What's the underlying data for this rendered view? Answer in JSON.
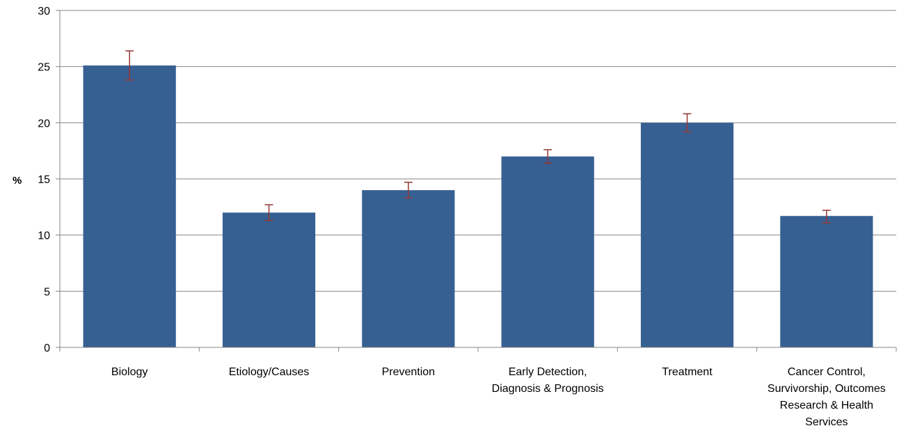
{
  "chart_data": {
    "type": "bar",
    "title": "",
    "xlabel": "",
    "ylabel": "%",
    "ylim": [
      0,
      30
    ],
    "yticks": [
      0,
      5,
      10,
      15,
      20,
      25,
      30
    ],
    "grid": true,
    "legend": "none",
    "categories": [
      [
        "Biology"
      ],
      [
        "Etiology/Causes"
      ],
      [
        "Prevention"
      ],
      [
        "Early Detection,",
        "Diagnosis & Prognosis"
      ],
      [
        "Treatment"
      ],
      [
        "Cancer Control,",
        "Survivorship, Outcomes",
        "Research & Health",
        "Services"
      ]
    ],
    "values": [
      25.1,
      12.0,
      14.0,
      17.0,
      20.0,
      11.7
    ],
    "error_low": [
      23.8,
      11.3,
      13.3,
      16.4,
      19.2,
      11.1
    ],
    "error_high": [
      26.4,
      12.7,
      14.7,
      17.6,
      20.8,
      12.2
    ],
    "colors": {
      "bar": "#376092",
      "error": "#953735",
      "grid": "#868686",
      "axis": "#868686"
    }
  }
}
